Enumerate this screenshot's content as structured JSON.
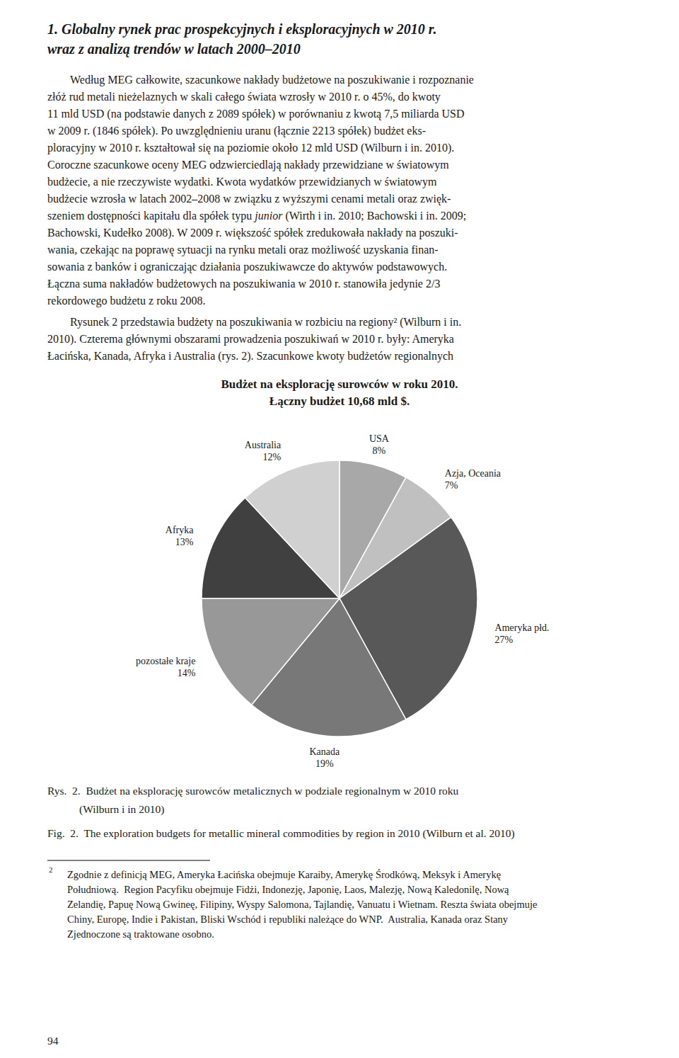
{
  "chart_data": {
    "type": "pie",
    "title": "Budżet na eksplorację surowców w roku 2010.",
    "subtitle": "Łączny budżet 10,68 mld $.",
    "categories": [
      "USA",
      "Azja, Oceania",
      "Ameryka płd.",
      "Kanada",
      "pozostałe kraje",
      "Afryka",
      "Australia"
    ],
    "values": [
      8,
      7,
      27,
      19,
      14,
      13,
      12
    ],
    "value_labels": [
      "8%",
      "7%",
      "27%",
      "19%",
      "14%",
      "13%",
      "12%"
    ],
    "colors": [
      "#a8a8a8",
      "#c0c0c0",
      "#585858",
      "#787878",
      "#989898",
      "#404040",
      "#d0d0d0"
    ],
    "data_labels": true
  },
  "page": {
    "title_lines": [
      "1. Globalny rynek prac prospekcyjnych i eksploracyjnych w 2010 r.",
      "wraz z analizą trendów w latach 2000–2010"
    ],
    "paragraphs": [
      [
        "Według MEG całkowite, szacunkowe nakłady budżetowe na poszukiwanie i rozpoznanie",
        "złóż rud metali nieżelaznych w skali całego świata wzrosły w 2010 r. o 45%, do kwoty",
        "11 mld USD (na podstawie danych z 2089 spółek) w porównaniu z kwotą 7,5 miliarda USD",
        "w 2009 r. (1846 spółek). Po uwzględnieniu uranu (łącznie 2213 spółek) budżet eks-",
        "ploracyjny w 2010 r. kształtował się na poziomie około 12 mld USD (Wilburn i in. 2010).",
        "Coroczne szacunkowe oceny MEG odzwierciedlają nakłady przewidziane w światowym",
        "budżecie, a nie rzeczywiste wydatki. Kwota wydatków przewidzianych w światowym",
        "budżecie wzrosła w latach 2002–2008 w związku z wyższymi cenami metali oraz zwięk-",
        "szeniem dostępności kapitału dla spółek typu junior (Wirth i in. 2010; Bachowski i in. 2009;",
        "Bachowski, Kudełko 2008). W 2009 r. większość spółek zredukowała nakłady na poszuki-",
        "wania, czekając na poprawę sytuacji na rynku metali oraz możliwość uzyskania finan-",
        "sowania z banków i ograniczając działania poszukiwawcze do aktywów podstawowych.",
        "Łączna suma nakładów budżetowych na poszukiwania w 2010 r. stanowiła jedynie 2/3",
        "rekordowego budżetu z roku 2008."
      ],
      [
        "Rysunek 2 przedstawia budżety na poszukiwania w rozbiciu na regiony² (Wilburn i in.",
        "2010). Czterema głównymi obszarami prowadzenia poszukiwań w 2010 r. były: Ameryka",
        "Łacińska, Kanada, Afryka i Australia (rys. 2). Szacunkowe kwoty budżetów regionalnych"
      ]
    ],
    "italic_word": "junior",
    "captions": [
      "Rys.  2.  Budżet na eksplorację surowców metalicznych w podziale regionalnym w 2010 roku",
      "(Wilburn i in 2010)",
      "Fig.  2.  The exploration budgets for metallic mineral commodities by region in 2010 (Wilburn et al. 2010)"
    ],
    "footnote_marker": "2",
    "footnote_lines": [
      "Zgodnie z definicją MEG, Ameryka Łacińska obejmuje Karaiby, Amerykę Środkówą, Meksyk i Amerykę",
      "Południową.  Region Pacyfiku obejmuje Fidżi, Indonezję, Japonię, Laos, Malezję, Nową Kaledonilę, Nową",
      "Zelandię, Papuę Nową Gwineę, Filipiny, Wyspy Salomona, Tajlandię, Vanuatu i Wietnam. Reszta świata obejmuje",
      "Chiny, Europę, Indie i Pakistan, Bliski Wschód i republiki należące do WNP.  Australia, Kanada oraz Stany",
      "Zjednoczone są traktowane osobno."
    ],
    "page_number": "94"
  }
}
